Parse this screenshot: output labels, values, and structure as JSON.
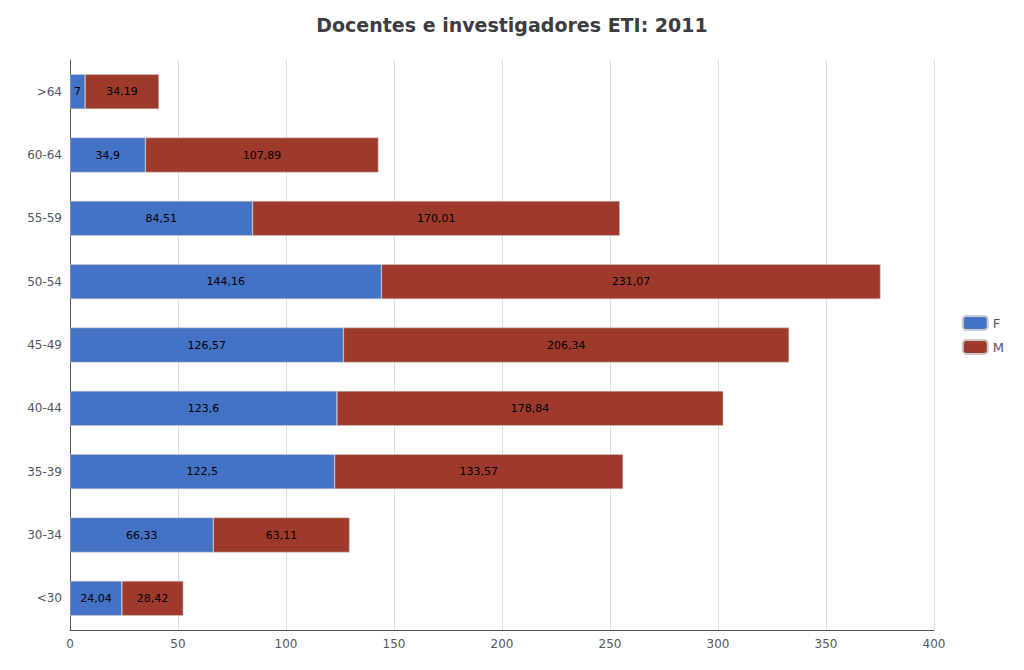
{
  "chart_data": {
    "type": "bar",
    "orientation": "horizontal",
    "stacked": true,
    "title": "Docentes e investigadores ETI: 2011",
    "categories": [
      "<30",
      "30-34",
      "35-39",
      "40-44",
      "45-49",
      "50-54",
      "55-59",
      "60-64",
      ">64"
    ],
    "series": [
      {
        "name": "F",
        "color": "#4472C4",
        "values": [
          24.04,
          66.33,
          122.5,
          123.6,
          126.57,
          144.16,
          84.51,
          34.9,
          7.0
        ],
        "value_labels": [
          "24,04",
          "66,33",
          "122,5",
          "123,6",
          "126,57",
          "144,16",
          "84,51",
          "34,9",
          "7"
        ]
      },
      {
        "name": "M",
        "color": "#9E3A2B",
        "values": [
          28.42,
          63.11,
          133.57,
          178.84,
          206.34,
          231.07,
          170.01,
          107.89,
          34.19
        ],
        "value_labels": [
          "28,42",
          "63,11",
          "133,57",
          "178,84",
          "206,34",
          "231,07",
          "170,01",
          "107,89",
          "34,19"
        ]
      }
    ],
    "xlim": [
      0,
      400
    ],
    "xticks": [
      0,
      50,
      100,
      150,
      200,
      250,
      300,
      350,
      400
    ],
    "grid": true,
    "legend": "right",
    "data_labels": true
  }
}
